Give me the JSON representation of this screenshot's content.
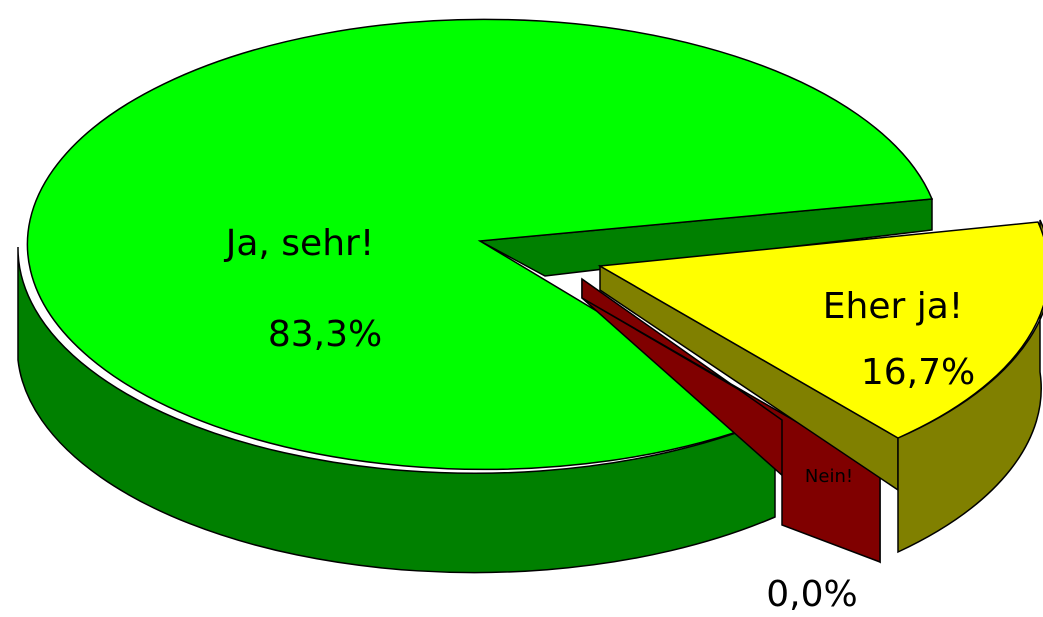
{
  "chart_data": {
    "type": "pie",
    "style": "3d-exploded",
    "slices": [
      {
        "label": "Ja, sehr!",
        "value": 83.3,
        "value_label": "83,3%",
        "color": "#00ff00",
        "side_color": "#008000"
      },
      {
        "label": "Eher ja!",
        "value": 16.7,
        "value_label": "16,7%",
        "color": "#ffff00",
        "side_color": "#808000"
      },
      {
        "label": "Nein!",
        "value": 0.0,
        "value_label": "0,0%",
        "color": "#800000",
        "side_color": "#800000"
      }
    ],
    "legend": "none",
    "title": ""
  }
}
